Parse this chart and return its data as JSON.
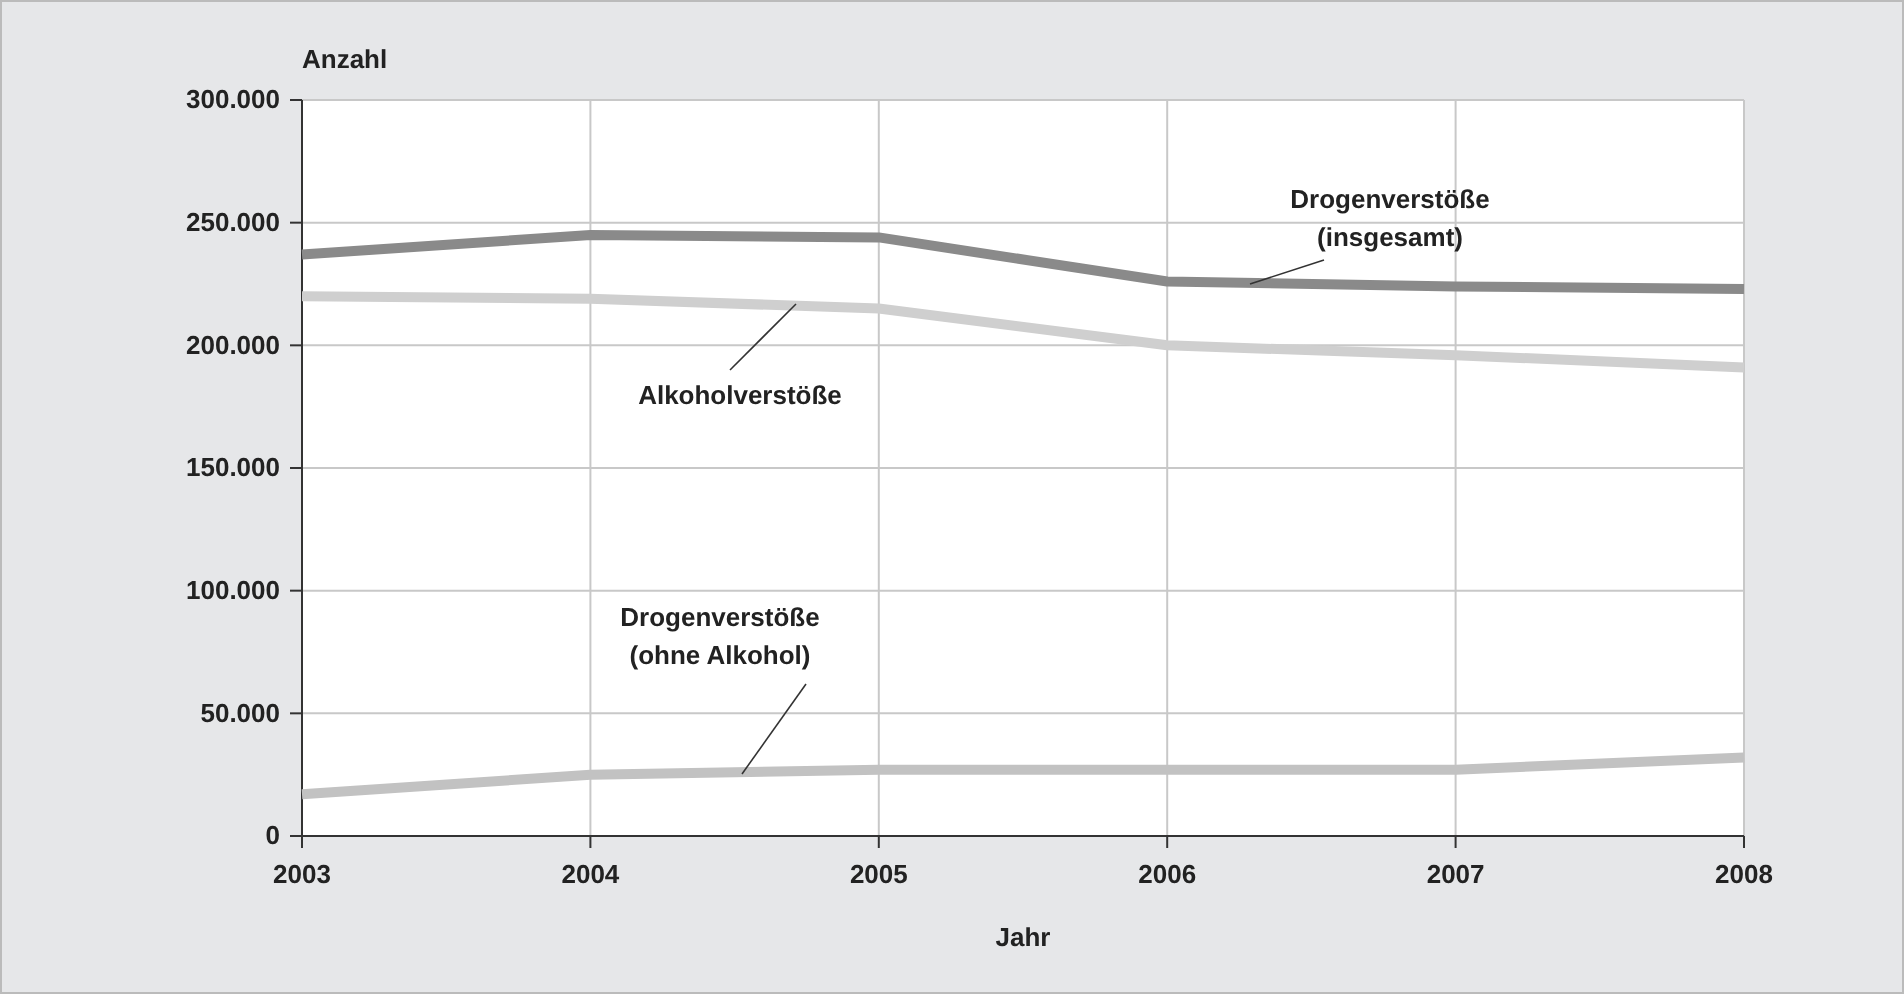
{
  "chart_data": {
    "type": "line",
    "xlabel": "Jahr",
    "ylabel": "Anzahl",
    "x": [
      2003,
      2004,
      2005,
      2006,
      2007,
      2008
    ],
    "xlim": [
      2003,
      2008
    ],
    "xticks": [
      2003,
      2004,
      2005,
      2006,
      2007,
      2008
    ],
    "ylim": [
      0,
      300000
    ],
    "yticks": [
      {
        "value": 0,
        "label": "0"
      },
      {
        "value": 50000,
        "label": "50.000"
      },
      {
        "value": 100000,
        "label": "100.000"
      },
      {
        "value": 150000,
        "label": "150.000"
      },
      {
        "value": 200000,
        "label": "200.000"
      },
      {
        "value": 250000,
        "label": "250.000"
      },
      {
        "value": 300000,
        "label": "300.000"
      }
    ],
    "grid": true,
    "marker": "none",
    "line_style": "solid",
    "series": [
      {
        "name": "Drogenverstöße (insgesamt)",
        "color": "#8a8a8a",
        "values": [
          237000,
          245000,
          244000,
          226000,
          224000,
          223000
        ]
      },
      {
        "name": "Alkoholverstöße",
        "color": "#cfcfcf",
        "values": [
          220000,
          219000,
          215000,
          200000,
          196000,
          191000
        ]
      },
      {
        "name": "Drogenverstöße (ohne Alkohol)",
        "color": "#c2c2c2",
        "values": [
          17000,
          25000,
          27000,
          27000,
          27000,
          32000
        ]
      }
    ]
  }
}
